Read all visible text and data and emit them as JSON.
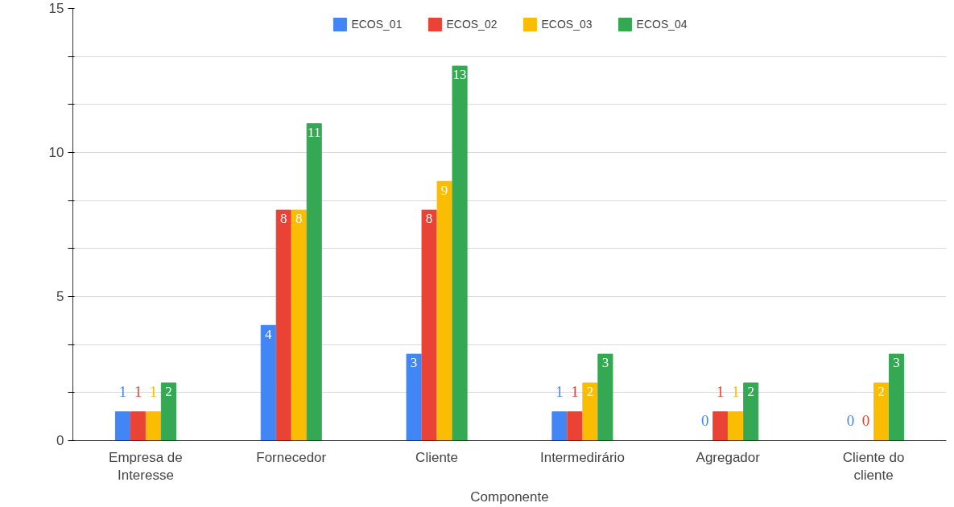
{
  "chart_data": {
    "type": "bar",
    "xlabel": "Componente",
    "categories": [
      "Empresa de Interesse",
      "Fornecedor",
      "Cliente",
      "Intermedirário",
      "Agregador",
      "Cliente do cliente"
    ],
    "series": [
      {
        "name": "ECOS_01",
        "color": "#4285f4",
        "values": [
          1,
          4,
          3,
          1,
          0,
          0
        ]
      },
      {
        "name": "ECOS_02",
        "color": "#ea4335",
        "values": [
          1,
          8,
          8,
          1,
          1,
          0
        ]
      },
      {
        "name": "ECOS_03",
        "color": "#fbbc04",
        "values": [
          1,
          8,
          9,
          2,
          1,
          2
        ]
      },
      {
        "name": "ECOS_04",
        "color": "#34a853",
        "values": [
          2,
          11,
          13,
          3,
          2,
          3
        ]
      }
    ],
    "ylim": [
      0,
      15
    ],
    "yticks": [
      0,
      {
        "value": 1.667,
        "label": null
      },
      {
        "value": 3.333,
        "label": null
      },
      5,
      {
        "value": 6.667,
        "label": null
      },
      {
        "value": 8.333,
        "label": null
      },
      10,
      {
        "value": 11.667,
        "label": null
      },
      {
        "value": 13.333,
        "label": null
      },
      15
    ],
    "grid": "y",
    "legend": "top",
    "data_labels": true
  }
}
